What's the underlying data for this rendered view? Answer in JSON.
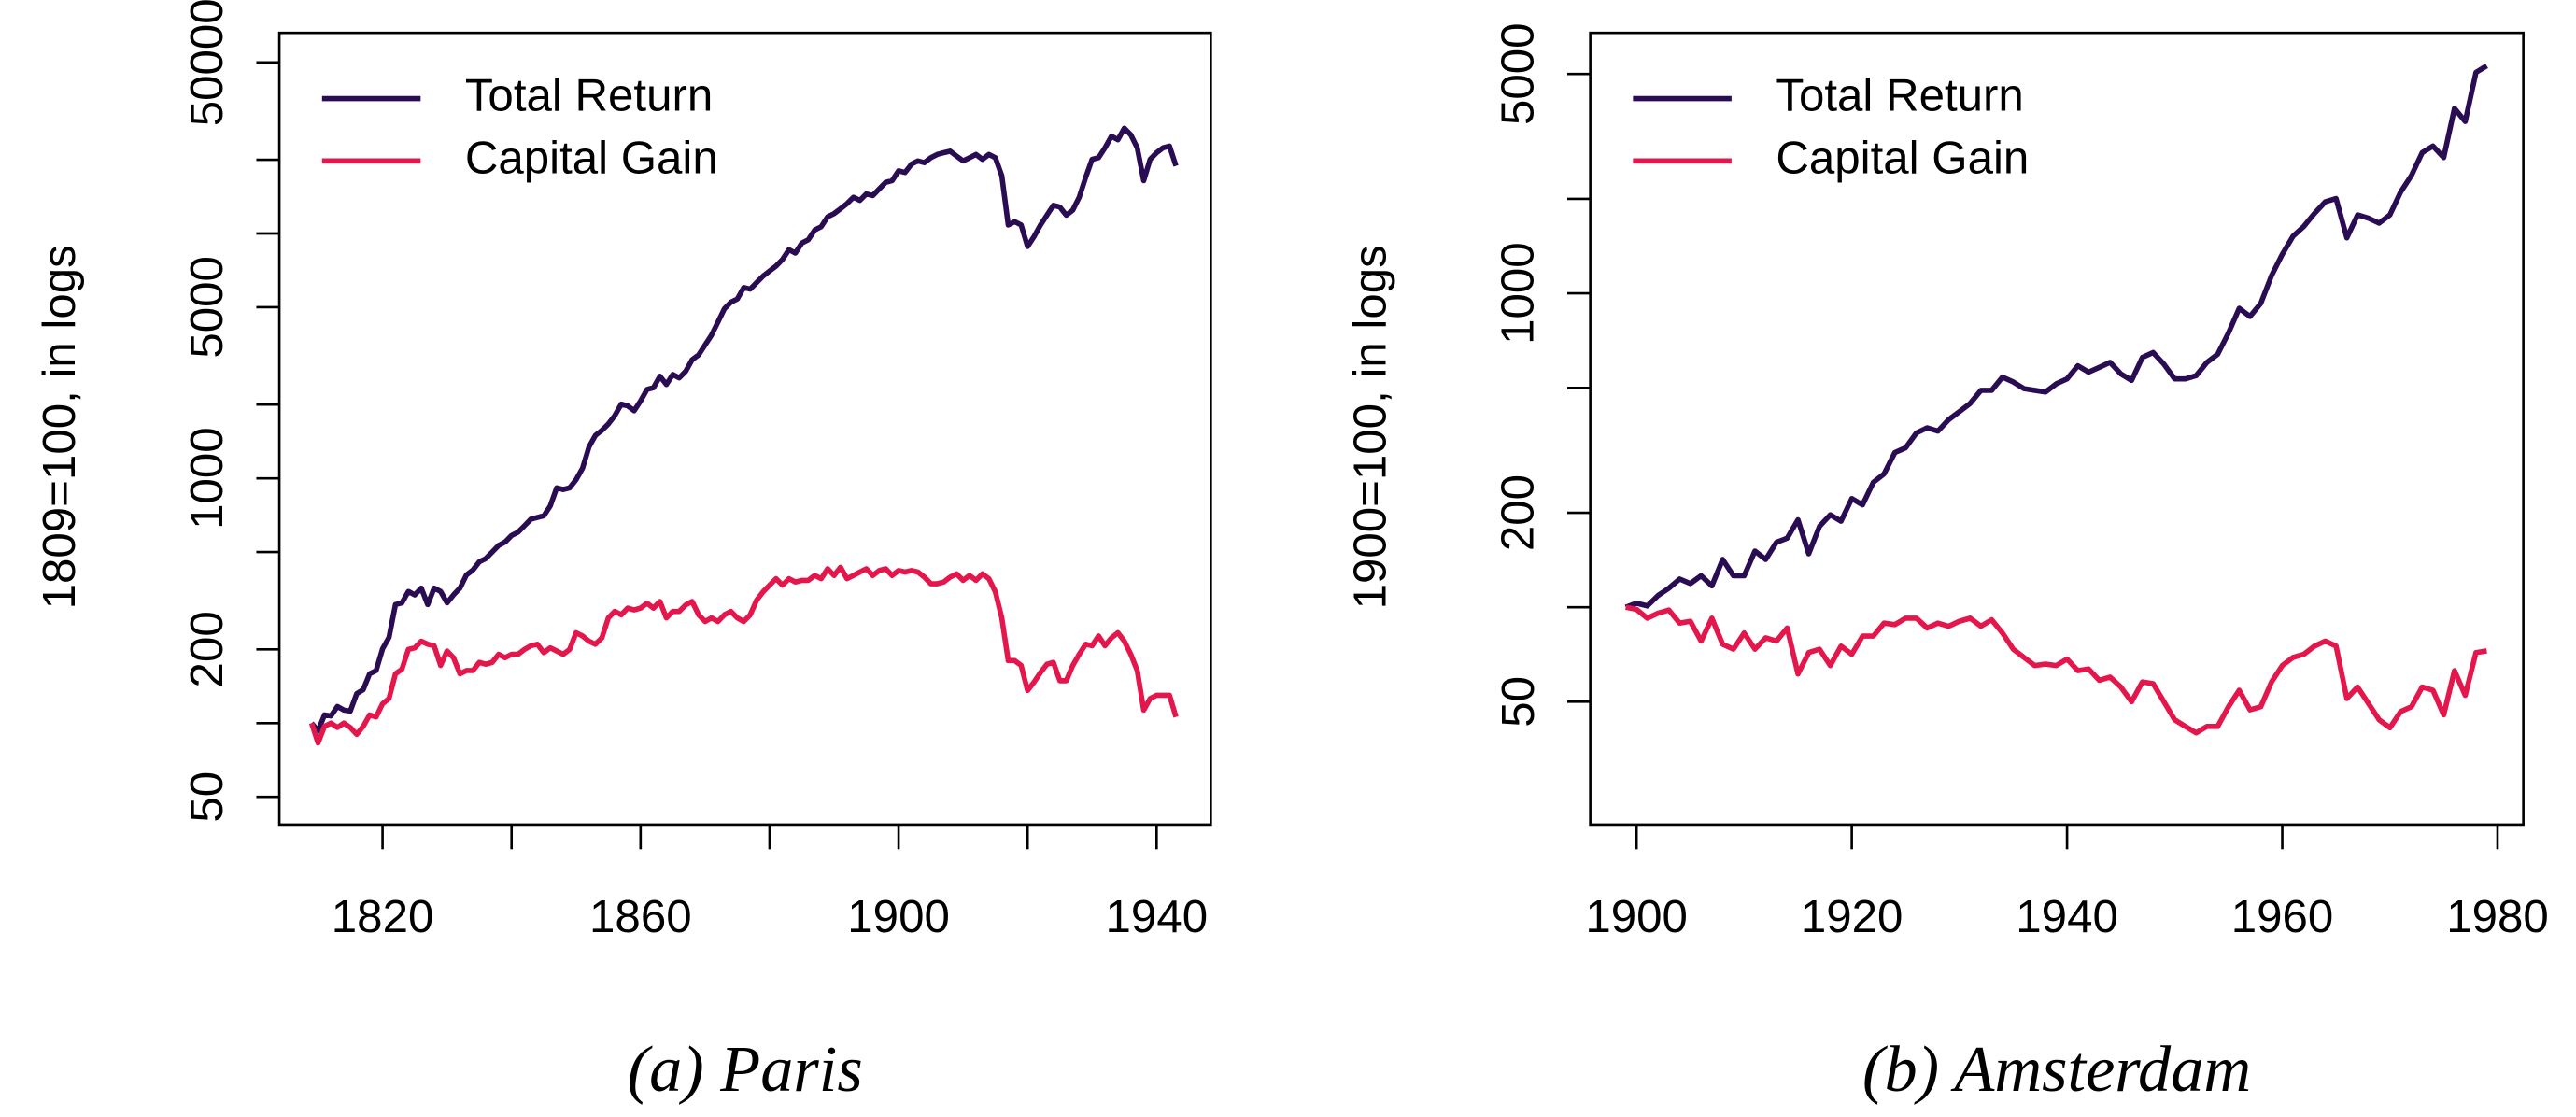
{
  "chart_data": [
    {
      "type": "line",
      "title": "(a) Paris",
      "ylabel": "1809=100, in logs",
      "log_y": true,
      "legend": "top-left",
      "x": [
        1809,
        1810,
        1811,
        1812,
        1813,
        1814,
        1815,
        1816,
        1817,
        1818,
        1819,
        1820,
        1821,
        1822,
        1823,
        1824,
        1825,
        1826,
        1827,
        1828,
        1829,
        1830,
        1831,
        1832,
        1833,
        1834,
        1835,
        1836,
        1837,
        1838,
        1839,
        1840,
        1841,
        1842,
        1843,
        1844,
        1845,
        1846,
        1847,
        1848,
        1849,
        1850,
        1851,
        1852,
        1853,
        1854,
        1855,
        1856,
        1857,
        1858,
        1859,
        1860,
        1861,
        1862,
        1863,
        1864,
        1865,
        1866,
        1867,
        1868,
        1869,
        1870,
        1871,
        1872,
        1873,
        1874,
        1875,
        1876,
        1877,
        1878,
        1879,
        1880,
        1881,
        1882,
        1883,
        1884,
        1885,
        1886,
        1887,
        1888,
        1889,
        1890,
        1891,
        1892,
        1893,
        1894,
        1895,
        1896,
        1897,
        1898,
        1899,
        1900,
        1901,
        1902,
        1903,
        1904,
        1905,
        1906,
        1907,
        1908,
        1909,
        1910,
        1911,
        1912,
        1913,
        1914,
        1915,
        1916,
        1917,
        1918,
        1919,
        1920,
        1921,
        1922,
        1923,
        1924,
        1925,
        1926,
        1927,
        1928,
        1929,
        1930,
        1931,
        1932,
        1933,
        1934,
        1935,
        1936,
        1937,
        1938,
        1939,
        1940,
        1941,
        1942,
        1943
      ],
      "series": [
        {
          "name": "Total Return",
          "color": "#2a0c52",
          "values": [
            100,
            93,
            108,
            107,
            117,
            113,
            112,
            132,
            137,
            159,
            164,
            201,
            224,
            305,
            310,
            345,
            334,
            356,
            305,
            356,
            345,
            310,
            334,
            356,
            403,
            422,
            456,
            470,
            500,
            532,
            549,
            584,
            602,
            640,
            681,
            692,
            703,
            771,
            914,
            900,
            914,
            987,
            1099,
            1343,
            1497,
            1570,
            1667,
            1803,
            2009,
            1978,
            1888,
            2070,
            2307,
            2344,
            2612,
            2417,
            2655,
            2572,
            2737,
            3050,
            3193,
            3505,
            3846,
            4352,
            4925,
            5240,
            5400,
            6013,
            5926,
            6305,
            6703,
            7027,
            7362,
            7834,
            8590,
            8318,
            9141,
            9426,
            10330,
            10660,
            11700,
            12050,
            12620,
            13240,
            14060,
            13650,
            14510,
            14290,
            15210,
            16180,
            16440,
            18030,
            17750,
            19190,
            19790,
            19470,
            20400,
            21040,
            21380,
            21690,
            20700,
            19790,
            20400,
            21040,
            20090,
            21040,
            20400,
            17220,
            10830,
            11170,
            10830,
            8850,
            9710,
            10830,
            11880,
            13030,
            12820,
            11880,
            12450,
            14060,
            16940,
            20090,
            20400,
            22390,
            24950,
            24150,
            26920,
            25290,
            22390,
            16440,
            20090,
            21380,
            22390,
            22740,
            18880
          ]
        },
        {
          "name": "Capital Gain",
          "color": "#e3174b",
          "values": [
            100,
            83,
            97,
            100,
            96,
            100,
            96,
            90,
            97,
            108,
            106,
            120,
            126,
            159,
            166,
            200,
            203,
            216,
            210,
            207,
            172,
            197,
            185,
            159,
            164,
            164,
            177,
            174,
            177,
            191,
            185,
            191,
            191,
            200,
            207,
            210,
            194,
            203,
            197,
            191,
            200,
            234,
            227,
            216,
            210,
            223,
            269,
            286,
            277,
            295,
            290,
            295,
            309,
            295,
            314,
            269,
            286,
            286,
            304,
            314,
            277,
            260,
            269,
            260,
            277,
            286,
            269,
            260,
            277,
            318,
            344,
            366,
            389,
            366,
            389,
            377,
            383,
            383,
            401,
            389,
            427,
            401,
            433,
            389,
            401,
            414,
            427,
            401,
            420,
            427,
            401,
            420,
            414,
            420,
            414,
            395,
            371,
            371,
            377,
            395,
            407,
            383,
            401,
            383,
            407,
            389,
            344,
            269,
            180,
            180,
            172,
            136,
            147,
            161,
            174,
            177,
            149,
            149,
            172,
            191,
            210,
            207,
            227,
            207,
            223,
            234,
            216,
            191,
            164,
            113,
            126,
            130,
            130,
            130,
            106
          ]
        }
      ],
      "xlim": [
        1804,
        1948.4
      ],
      "ylim": [
        38.5,
        66000
      ],
      "xticks": [
        1820,
        {
          "value": 1840,
          "label": null
        },
        1860,
        {
          "value": 1880,
          "label": null
        },
        1900,
        {
          "value": 1920,
          "label": null
        },
        1940
      ],
      "yticks": [
        50,
        {
          "value": 100,
          "label": null
        },
        200,
        {
          "value": 500,
          "label": null
        },
        1000,
        {
          "value": 2000,
          "label": null
        },
        5000,
        {
          "value": 10000,
          "label": null
        },
        {
          "value": 20000,
          "label": null
        },
        50000
      ]
    },
    {
      "type": "line",
      "title": "(b) Amsterdam",
      "ylabel": "1900=100, in logs",
      "log_y": true,
      "legend": "top-left",
      "x": [
        1899,
        1900,
        1901,
        1902,
        1903,
        1904,
        1905,
        1906,
        1907,
        1908,
        1909,
        1910,
        1911,
        1912,
        1913,
        1914,
        1915,
        1916,
        1917,
        1918,
        1919,
        1920,
        1921,
        1922,
        1923,
        1924,
        1925,
        1926,
        1927,
        1928,
        1929,
        1930,
        1931,
        1932,
        1933,
        1934,
        1935,
        1936,
        1937,
        1938,
        1939,
        1940,
        1941,
        1942,
        1943,
        1944,
        1945,
        1946,
        1947,
        1948,
        1949,
        1950,
        1951,
        1952,
        1953,
        1954,
        1955,
        1956,
        1957,
        1958,
        1959,
        1960,
        1961,
        1962,
        1963,
        1964,
        1965,
        1966,
        1967,
        1968,
        1969,
        1970,
        1971,
        1972,
        1973,
        1974,
        1975,
        1976,
        1977,
        1978,
        1979
      ],
      "series": [
        {
          "name": "Total Return",
          "color": "#2a0c52",
          "values": [
            100,
            103,
            101,
            109,
            115,
            123,
            119,
            126,
            117,
            142,
            126,
            126,
            151,
            142,
            161,
            166,
            190,
            148,
            181,
            197,
            188,
            222,
            212,
            250,
            266,
            311,
            322,
            359,
            373,
            364,
            396,
            420,
            446,
            491,
            491,
            541,
            522,
            497,
            491,
            485,
            515,
            534,
            588,
            561,
            581,
            603,
            554,
            528,
            625,
            648,
            595,
            534,
            534,
            547,
            603,
            640,
            748,
            896,
            844,
            929,
            1139,
            1332,
            1521,
            1634,
            1799,
            1957,
            2005,
            1502,
            1778,
            1736,
            1674,
            1778,
            2104,
            2373,
            2808,
            2946,
            2709,
            3884,
            3528,
            5059,
            5310
          ]
        },
        {
          "name": "Capital Gain",
          "color": "#e3174b",
          "values": [
            100,
            98.4,
            92.3,
            95.7,
            98.0,
            89.0,
            90.2,
            78.0,
            92.3,
            76.2,
            73.5,
            82.8,
            73.5,
            79.9,
            78.0,
            85.9,
            61.3,
            71.7,
            73.5,
            65.2,
            75.2,
            70.8,
            80.9,
            80.9,
            89.0,
            88.0,
            92.3,
            92.3,
            85.9,
            89.0,
            87.0,
            90.2,
            92.3,
            87.0,
            91.2,
            82.8,
            73.5,
            69.2,
            65.2,
            65.9,
            65.2,
            68.4,
            62.8,
            63.6,
            58.5,
            59.9,
            55.7,
            50,
            57.8,
            57.1,
            50,
            43.8,
            41.7,
            39.8,
            41.7,
            41.7,
            48.2,
            54.4,
            47.1,
            48.2,
            57.8,
            65.2,
            69.2,
            70.8,
            75.2,
            78.0,
            75.2,
            51.2,
            55.7,
            49.4,
            43.8,
            41.3,
            46.5,
            48.2,
            55.7,
            54.4,
            45.4,
            62.8,
            52.4,
            71.7,
            72.6
          ]
        }
      ],
      "xlim": [
        1895.7,
        1982.4
      ],
      "ylim": [
        20.3,
        6760
      ],
      "xticks": [
        1900,
        1920,
        1940,
        1960,
        1980
      ],
      "yticks": [
        50,
        {
          "value": 100,
          "label": null
        },
        200,
        {
          "value": 500,
          "label": null
        },
        1000,
        {
          "value": 2000,
          "label": null
        },
        5000
      ]
    }
  ]
}
